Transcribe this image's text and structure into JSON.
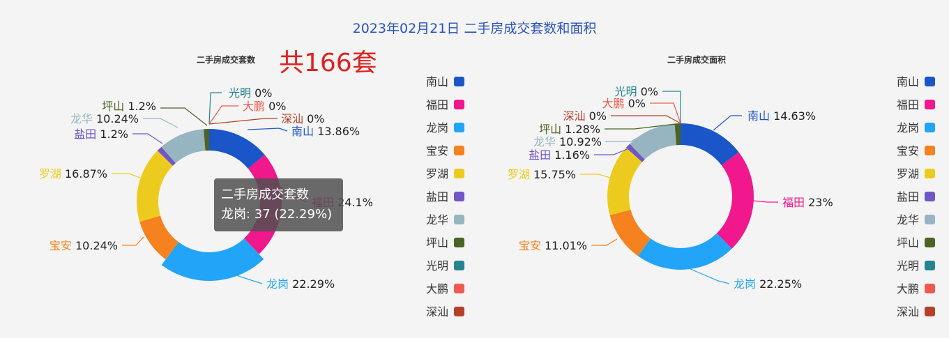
{
  "title": "2023年02月21日 二手房成交套数和面积",
  "total_label": "共166套",
  "tooltip": {
    "title": "二手房成交套数",
    "text": "龙岗: 37 (22.29%)"
  },
  "colors": {
    "南山": "#1a56c8",
    "福田": "#f0188c",
    "龙岗": "#22a5f8",
    "宝安": "#f5821f",
    "罗湖": "#edcb1e",
    "盐田": "#7156c5",
    "龙华": "#97b4c1",
    "坪山": "#4c6324",
    "光明": "#268390",
    "大鹏": "#ef5a4f",
    "深汕": "#b5402a"
  },
  "chart_data": [
    {
      "type": "pie",
      "subtype": "donut",
      "title": "二手房成交套数",
      "labels": [
        "南山",
        "福田",
        "龙岗",
        "宝安",
        "罗湖",
        "盐田",
        "龙华",
        "坪山",
        "光明",
        "大鹏",
        "深汕"
      ],
      "values": [
        23,
        40,
        37,
        17,
        28,
        2,
        17,
        2,
        0,
        0,
        0
      ],
      "percent_labels": [
        "13.86%",
        "24.1%",
        "22.29%",
        "10.24%",
        "16.87%",
        "1.2%",
        "10.24%",
        "1.2%",
        "0%",
        "0%",
        "0%"
      ],
      "highlighted": "龙岗",
      "legend_position": "right"
    },
    {
      "type": "pie",
      "subtype": "donut",
      "title": "二手房成交面积",
      "labels": [
        "南山",
        "福田",
        "龙岗",
        "宝安",
        "罗湖",
        "盐田",
        "龙华",
        "坪山",
        "光明",
        "大鹏",
        "深汕"
      ],
      "values": [
        14.63,
        23,
        22.25,
        11.01,
        15.75,
        1.16,
        10.92,
        1.28,
        0,
        0,
        0
      ],
      "percent_labels": [
        "14.63%",
        "23%",
        "22.25%",
        "11.01%",
        "15.75%",
        "1.16%",
        "10.92%",
        "1.28%",
        "0%",
        "0%",
        "0%"
      ],
      "legend_position": "right"
    }
  ]
}
